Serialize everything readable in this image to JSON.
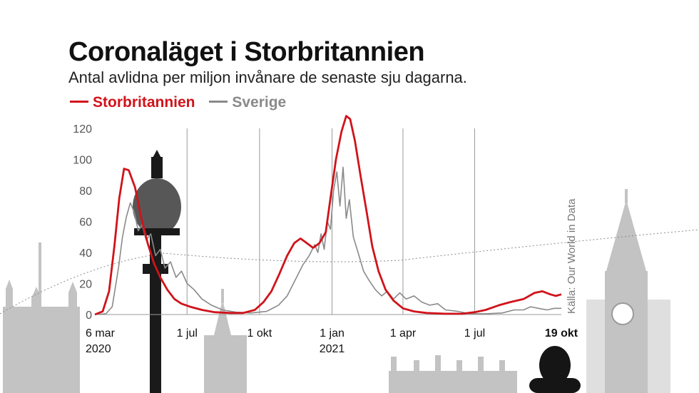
{
  "title": "Coronaläget i Storbritannien",
  "subtitle": "Antal avlidna per miljon invånare de senaste sju dagarna.",
  "source": "Källa: Our World in Data",
  "colors": {
    "uk": "#d0131a",
    "se": "#8a8a8a",
    "grid": "#9a9a9a",
    "background": "#ffffff"
  },
  "chart_data": {
    "type": "line",
    "xlabel": "",
    "ylabel": "",
    "ylim": [
      0,
      120
    ],
    "yticks": [
      0,
      20,
      40,
      60,
      80,
      100,
      120
    ],
    "xlim": [
      "2020-03-06",
      "2021-10-19"
    ],
    "grid": "vertical lines at x ticks",
    "legend": "top-left",
    "x_ticks": [
      {
        "date": "2020-03-06",
        "line1": "6 mar",
        "line2": "2020"
      },
      {
        "date": "2020-07-01",
        "line1": "1 jul",
        "line2": ""
      },
      {
        "date": "2020-10-01",
        "line1": "1 okt",
        "line2": ""
      },
      {
        "date": "2021-01-01",
        "line1": "1 jan",
        "line2": "2021"
      },
      {
        "date": "2021-04-01",
        "line1": "1 apr",
        "line2": ""
      },
      {
        "date": "2021-07-01",
        "line1": "1 jul",
        "line2": ""
      },
      {
        "date": "2021-10-19",
        "line1": "19 okt",
        "line2": "",
        "bold": true
      }
    ],
    "series": [
      {
        "name": "Storbritannien",
        "color": "#d0131a",
        "points": [
          [
            "2020-03-06",
            0
          ],
          [
            "2020-03-16",
            2
          ],
          [
            "2020-03-24",
            15
          ],
          [
            "2020-03-31",
            45
          ],
          [
            "2020-04-06",
            75
          ],
          [
            "2020-04-12",
            94
          ],
          [
            "2020-04-18",
            93
          ],
          [
            "2020-04-26",
            82
          ],
          [
            "2020-05-04",
            62
          ],
          [
            "2020-05-12",
            46
          ],
          [
            "2020-05-20",
            33
          ],
          [
            "2020-05-28",
            24
          ],
          [
            "2020-06-06",
            16
          ],
          [
            "2020-06-15",
            10
          ],
          [
            "2020-06-24",
            7
          ],
          [
            "2020-07-05",
            5
          ],
          [
            "2020-07-20",
            3
          ],
          [
            "2020-08-05",
            1.5
          ],
          [
            "2020-08-25",
            1
          ],
          [
            "2020-09-10",
            1
          ],
          [
            "2020-09-25",
            3
          ],
          [
            "2020-10-06",
            8
          ],
          [
            "2020-10-16",
            15
          ],
          [
            "2020-10-26",
            26
          ],
          [
            "2020-11-05",
            38
          ],
          [
            "2020-11-14",
            46
          ],
          [
            "2020-11-22",
            49
          ],
          [
            "2020-11-30",
            46
          ],
          [
            "2020-12-08",
            43
          ],
          [
            "2020-12-16",
            46
          ],
          [
            "2020-12-24",
            53
          ],
          [
            "2020-12-30",
            75
          ],
          [
            "2021-01-06",
            100
          ],
          [
            "2021-01-13",
            118
          ],
          [
            "2021-01-19",
            128
          ],
          [
            "2021-01-24",
            126
          ],
          [
            "2021-01-30",
            112
          ],
          [
            "2021-02-06",
            90
          ],
          [
            "2021-02-14",
            66
          ],
          [
            "2021-02-21",
            44
          ],
          [
            "2021-03-01",
            28
          ],
          [
            "2021-03-10",
            16
          ],
          [
            "2021-03-20",
            9
          ],
          [
            "2021-04-01",
            4
          ],
          [
            "2021-04-15",
            2
          ],
          [
            "2021-05-01",
            1
          ],
          [
            "2021-05-25",
            0.5
          ],
          [
            "2021-06-15",
            0.5
          ],
          [
            "2021-07-01",
            1.5
          ],
          [
            "2021-07-15",
            3
          ],
          [
            "2021-08-01",
            6
          ],
          [
            "2021-08-15",
            8
          ],
          [
            "2021-09-01",
            10
          ],
          [
            "2021-09-15",
            14
          ],
          [
            "2021-09-25",
            15
          ],
          [
            "2021-10-05",
            13
          ],
          [
            "2021-10-12",
            12
          ],
          [
            "2021-10-19",
            13
          ]
        ]
      },
      {
        "name": "Sverige",
        "color": "#8a8a8a",
        "points": [
          [
            "2020-03-06",
            0
          ],
          [
            "2020-03-20",
            0.5
          ],
          [
            "2020-03-28",
            5
          ],
          [
            "2020-04-05",
            30
          ],
          [
            "2020-04-10",
            50
          ],
          [
            "2020-04-15",
            63
          ],
          [
            "2020-04-20",
            72
          ],
          [
            "2020-04-25",
            66
          ],
          [
            "2020-04-30",
            54
          ],
          [
            "2020-05-05",
            58
          ],
          [
            "2020-05-10",
            48
          ],
          [
            "2020-05-16",
            52
          ],
          [
            "2020-05-22",
            38
          ],
          [
            "2020-05-28",
            42
          ],
          [
            "2020-06-03",
            30
          ],
          [
            "2020-06-10",
            34
          ],
          [
            "2020-06-17",
            24
          ],
          [
            "2020-06-24",
            28
          ],
          [
            "2020-07-01",
            20
          ],
          [
            "2020-07-10",
            16
          ],
          [
            "2020-07-20",
            10
          ],
          [
            "2020-08-01",
            6
          ],
          [
            "2020-08-15",
            3
          ],
          [
            "2020-09-01",
            1.5
          ],
          [
            "2020-09-20",
            1
          ],
          [
            "2020-10-10",
            2
          ],
          [
            "2020-10-25",
            6
          ],
          [
            "2020-11-05",
            12
          ],
          [
            "2020-11-15",
            22
          ],
          [
            "2020-11-25",
            32
          ],
          [
            "2020-12-03",
            38
          ],
          [
            "2020-12-10",
            45
          ],
          [
            "2020-12-14",
            40
          ],
          [
            "2020-12-18",
            52
          ],
          [
            "2020-12-22",
            42
          ],
          [
            "2020-12-26",
            60
          ],
          [
            "2020-12-30",
            55
          ],
          [
            "2021-01-03",
            80
          ],
          [
            "2021-01-07",
            92
          ],
          [
            "2021-01-11",
            70
          ],
          [
            "2021-01-15",
            95
          ],
          [
            "2021-01-19",
            62
          ],
          [
            "2021-01-23",
            74
          ],
          [
            "2021-01-28",
            50
          ],
          [
            "2021-02-03",
            40
          ],
          [
            "2021-02-10",
            28
          ],
          [
            "2021-02-17",
            22
          ],
          [
            "2021-02-25",
            16
          ],
          [
            "2021-03-05",
            12
          ],
          [
            "2021-03-12",
            15
          ],
          [
            "2021-03-20",
            10
          ],
          [
            "2021-03-28",
            14
          ],
          [
            "2021-04-05",
            10
          ],
          [
            "2021-04-15",
            12
          ],
          [
            "2021-04-25",
            8
          ],
          [
            "2021-05-05",
            6
          ],
          [
            "2021-05-15",
            7
          ],
          [
            "2021-05-25",
            3
          ],
          [
            "2021-06-10",
            2
          ],
          [
            "2021-06-25",
            0.5
          ],
          [
            "2021-07-15",
            0.5
          ],
          [
            "2021-08-05",
            1
          ],
          [
            "2021-08-20",
            3
          ],
          [
            "2021-09-01",
            3
          ],
          [
            "2021-09-10",
            5
          ],
          [
            "2021-09-20",
            4
          ],
          [
            "2021-10-01",
            3
          ],
          [
            "2021-10-10",
            4
          ],
          [
            "2021-10-19",
            4
          ]
        ]
      }
    ]
  }
}
